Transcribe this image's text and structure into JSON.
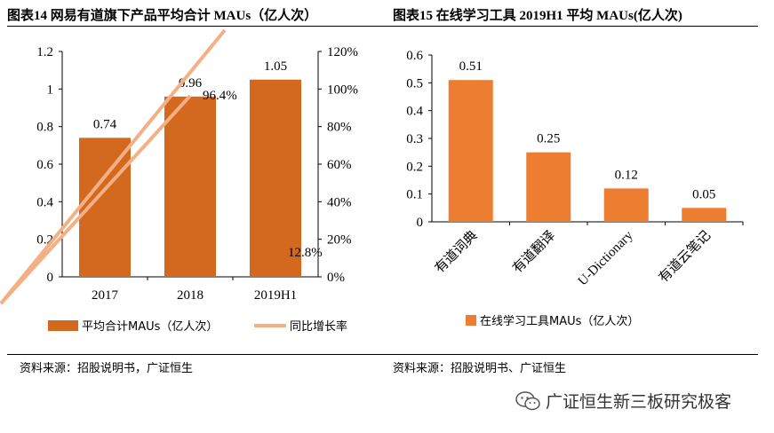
{
  "left": {
    "title": "图表14 网易有道旗下产品平均合计 MAUs（亿人次）",
    "source": "资料来源：招股说明书，广证恒生",
    "chart_data": {
      "type": "bar",
      "categories": [
        "2017",
        "2018",
        "2019H1"
      ],
      "series": [
        {
          "name": "平均合计MAUs（亿人次）",
          "type": "bar",
          "values": [
            0.74,
            0.96,
            1.05
          ],
          "labels": [
            "0.74",
            "0.96",
            "1.05"
          ],
          "color": "#D2691E"
        },
        {
          "name": "同比增长率",
          "type": "line",
          "axis": "right",
          "values": [
            null,
            96.4,
            12.8
          ],
          "labels": [
            "",
            "96.4%",
            "12.8%"
          ],
          "color": "#F4B084"
        }
      ],
      "ylim": [
        0,
        1.2
      ],
      "yticks": [
        "0",
        "0.2",
        "0.4",
        "0.6",
        "0.8",
        "1",
        "1.2"
      ],
      "y2lim": [
        0,
        120
      ],
      "y2ticks": [
        "0%",
        "20%",
        "40%",
        "60%",
        "80%",
        "100%",
        "120%"
      ],
      "legend": "bottom",
      "grid": false
    }
  },
  "right": {
    "title": "图表15  在线学习工具 2019H1 平均 MAUs(亿人次)",
    "source": "资料来源：招股说明书、广证恒生",
    "chart_data": {
      "type": "bar",
      "categories": [
        "有道词典",
        "有道翻译",
        "U-Dictionary",
        "有道云笔记"
      ],
      "series": [
        {
          "name": "在线学习工具MAUs（亿人次）",
          "values": [
            0.51,
            0.25,
            0.12,
            0.05
          ],
          "labels": [
            "0.51",
            "0.25",
            "0.12",
            "0.05"
          ],
          "color": "#ED7D31"
        }
      ],
      "ylim": [
        0,
        0.6
      ],
      "yticks": [
        "0",
        "0.1",
        "0.2",
        "0.3",
        "0.4",
        "0.5",
        "0.6"
      ],
      "legend": "bottom",
      "grid": false
    }
  },
  "watermark": {
    "text": "广证恒生新三板研究极客",
    "icon": "wechat-icon"
  }
}
